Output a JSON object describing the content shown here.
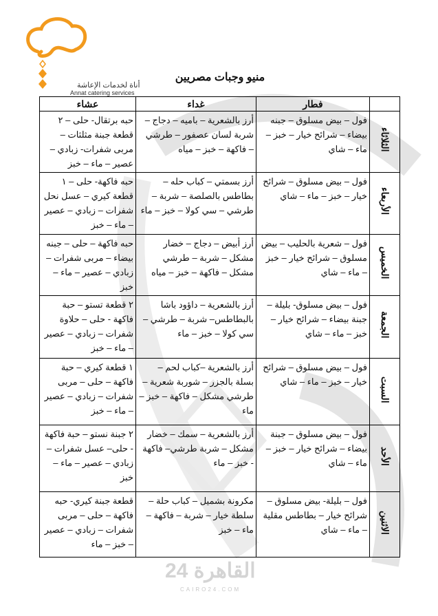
{
  "logo": {
    "arabic": "أناة لخدمات الإعاشة",
    "english": "Annat catering services",
    "color": "#f29a1d"
  },
  "title": "منيو وجبات مصريين",
  "table": {
    "headers": {
      "breakfast": "فطار",
      "lunch": "غداء",
      "dinner": "عشاء"
    },
    "rows": [
      {
        "day": "الثلاثاء",
        "breakfast": "فول – بيض مسلوق – جبنه بيضاء – شرائح خيار – خبز – ماء – شاي",
        "lunch": "أرز بالشعرية – باميه – دجاج – شربة لسان عصفور – طرشي – فاكهة – خبز – مياه",
        "dinner": "حبه برتقال- حلى – ٢ قطعة جبنة مثلثات – مربى شفرات- زبادي – عصير – ماء – خبز"
      },
      {
        "day": "الأربعاء",
        "breakfast": "فول – بيض مسلوق – شرائح خيار – خبز – ماء – شاي",
        "lunch": "أرز بسمتي – كباب حله – بطاطس بالصلصة – شربة – طرشي – سي كولا – خبز – ماء",
        "dinner": "حبه فاكهة- حلى – ١ قطعة كيري – عسل نحل شفرات – زبادي – عصير – ماء – خبز"
      },
      {
        "day": "الخميس",
        "breakfast": "فول – شعرية بالحليب – بيض مسلوق – شرائح خيار – خبز – ماء – شاي",
        "lunch": "أرز أبيض – دجاج – خضار مشكل – شربة – طرشي مشكل – فاكهة – خبز – مياه",
        "dinner": "حبه فاكهة – حلى – جبنه بيضاء – مربى شفرات – زبادي – عصير – ماء – خبز"
      },
      {
        "day": "الجمعة",
        "breakfast": "فول – بيض مسلوق- بليلة – جبنة بيضاء – شرائح خيار – خبز – ماء – شاي",
        "lunch": "أرز بالشعرية – داؤود باشا بالبطاطس– شربة – طرشي – سي كولا – خبز – ماء",
        "dinner": "٢ قطعة تستو – حبة فاكهة - حلى – حلاوة شفرات – زبادي – عصير – ماء – خبز"
      },
      {
        "day": "السبت",
        "breakfast": "فول – بيض مسلوق – شرائح خيار – خبز – ماء – شاي",
        "lunch": "أرز بالشعرية –كباب لحم – بسلة بالجزر – شوربة شعرية – طرشي مشكل – فاكهة – خبز – ماء",
        "dinner": "١ قطعة كيري – حبة فاكهة – حلى – مربى شفرات – زبادي – عصير – ماء – خبز"
      },
      {
        "day": "الأحد",
        "breakfast": "فول – بيض مسلوق – جبنة بيضاء – شرائح خيار – خبز – ماء – شاي",
        "lunch": "أرز بالشعرية – سمك – خضار مشكل – شربة طرشي– فاكهة - خبز – ماء",
        "dinner": "٢ جبنة نستو – حبة فاكهة - حلى– عسل شفرات – زبادي – عصير – ماء – خبز"
      },
      {
        "day": "الاثنين",
        "breakfast": "فول – بليلة- بيض مسلوق – شرائح خيار – بطاطس مقلية – ماء – شاي",
        "lunch": "مكرونة بشميل – كباب حلة – سلطة خيار – شربة – فاكهة – ماء – خبز",
        "dinner": "قطعة جبنة كيري- حبه فاكهة – حلى – مربى شفرات – زبادي – عصير – خبز – ماء"
      }
    ]
  },
  "watermark": {
    "text": "القاهرة 24",
    "sub": "CAIRO24.COM",
    "color": "#d8d8d8"
  }
}
